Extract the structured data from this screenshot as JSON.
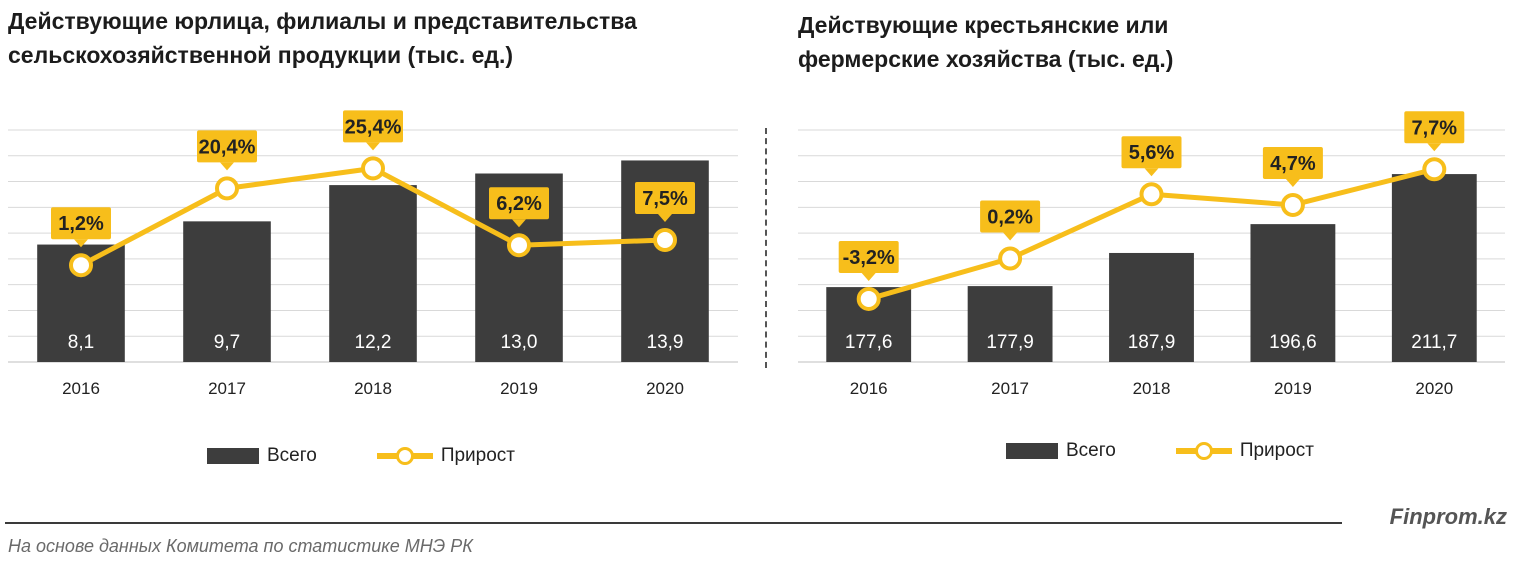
{
  "colors": {
    "bar": "#3d3d3d",
    "line": "#f7be1b",
    "grid": "#d9d9d9",
    "label_bg": "#f7be1b"
  },
  "footer": {
    "brand": "Finprom.kz",
    "source": "На основе данных  Комитета по статистике МНЭ РК"
  },
  "chart_data": [
    {
      "type": "bar",
      "title": "Действующие юрлица, филиалы и представительства\nсельскохозяйственной продукции (тыс. ед.)",
      "categories": [
        "2016",
        "2017",
        "2018",
        "2019",
        "2020"
      ],
      "series": [
        {
          "name": "Всего",
          "kind": "bar",
          "values": [
            8.1,
            9.7,
            12.2,
            13.0,
            13.9
          ],
          "labels": [
            "8,1",
            "9,7",
            "12,2",
            "13,0",
            "13,9"
          ]
        },
        {
          "name": "Прирост",
          "kind": "line",
          "values": [
            1.2,
            20.4,
            25.4,
            6.2,
            7.5
          ],
          "labels": [
            "1,2%",
            "20,4%",
            "25,4%",
            "6,2%",
            "7,5%"
          ]
        }
      ],
      "legend": [
        "Всего",
        "Прирост"
      ],
      "bar_ylim": [
        0,
        16
      ],
      "line_ylim": [
        -23,
        35
      ],
      "grid": true
    },
    {
      "type": "bar",
      "title": "Действующие крестьянские или\nфермерские хозяйства (тыс. ед.)",
      "categories": [
        "2016",
        "2017",
        "2018",
        "2019",
        "2020"
      ],
      "series": [
        {
          "name": "Всего",
          "kind": "bar",
          "values": [
            177.6,
            177.9,
            187.9,
            196.6,
            211.7
          ],
          "labels": [
            "177,6",
            "177,9",
            "187,9",
            "196,6",
            "211,7"
          ]
        },
        {
          "name": "Прирост",
          "kind": "line",
          "values": [
            -3.2,
            0.2,
            5.6,
            4.7,
            7.7
          ],
          "labels": [
            "-3,2%",
            "0,2%",
            "5,6%",
            "4,7%",
            "7,7%"
          ]
        }
      ],
      "legend": [
        "Всего",
        "Прирост"
      ],
      "bar_ylim": [
        155,
        225
      ],
      "line_ylim": [
        -8.5,
        11
      ],
      "grid": true
    }
  ]
}
